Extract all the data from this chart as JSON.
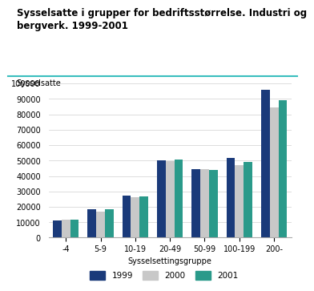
{
  "title": "Sysselsatte i grupper for bedriftsstørrelse. Industri og\nbergverk. 1999-2001",
  "ylabel": "Sysselsatte",
  "xlabel": "Sysselsettingsgruppe",
  "categories": [
    "-4",
    "5-9",
    "10-19",
    "20-49",
    "50-99",
    "100-199",
    "200-"
  ],
  "series": {
    "1999": [
      11000,
      18500,
      27500,
      50000,
      44500,
      51500,
      96000
    ],
    "2000": [
      11500,
      17000,
      26000,
      49500,
      44500,
      47000,
      84500
    ],
    "2001": [
      11500,
      18500,
      27000,
      50500,
      44000,
      49000,
      89000
    ]
  },
  "colors": {
    "1999": "#1a3a7a",
    "2000": "#c8c8c8",
    "2001": "#2a9a8a"
  },
  "ylim": [
    0,
    100000
  ],
  "yticks": [
    0,
    10000,
    20000,
    30000,
    40000,
    50000,
    60000,
    70000,
    80000,
    90000,
    100000
  ],
  "ytick_labels": [
    "0",
    "10000",
    "20000",
    "30000",
    "40000",
    "50000",
    "60000",
    "70000",
    "80000",
    "90000",
    "100000"
  ],
  "background_color": "#ffffff",
  "title_color": "#000000",
  "grid_color": "#d0d0d0",
  "accent_color": "#3bbfbf",
  "bar_width": 0.25,
  "legend_labels": [
    "1999",
    "2000",
    "2001"
  ]
}
